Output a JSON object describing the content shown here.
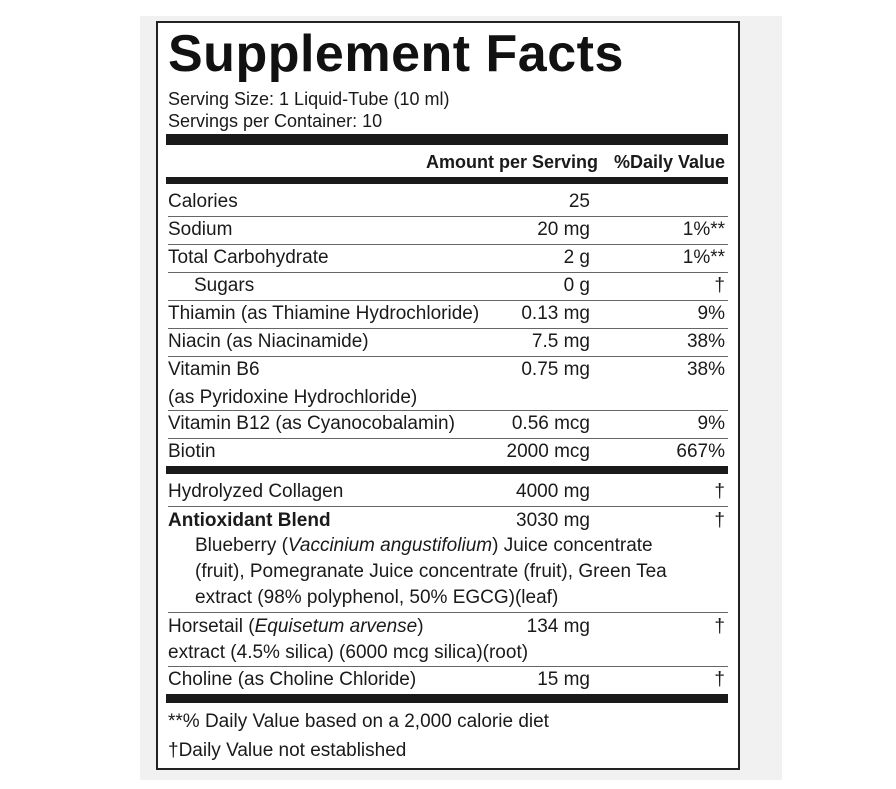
{
  "title": "Supplement Facts",
  "serving_size": "Serving Size:  1 Liquid-Tube (10 ml)",
  "servings_per_container": "Servings per Container:  10",
  "header": {
    "amount": "Amount per Serving",
    "daily_value": "%Daily Value"
  },
  "rows": [
    {
      "name": "Calories",
      "amount": "25"
    },
    {
      "name": "Sodium",
      "amount": "20 mg",
      "daily_value": "1%**"
    },
    {
      "name": "Total Carbohydrate",
      "amount": "2 g",
      "daily_value": "1%**"
    },
    {
      "name": "Sugars",
      "amount": "0 g",
      "daily_value": "†"
    },
    {
      "name": "Thiamin (as Thiamine Hydrochloride)",
      "amount": "0.13 mg",
      "daily_value": "9%"
    },
    {
      "name": "Niacin (as Niacinamide)",
      "amount": "7.5 mg",
      "daily_value": "38%"
    },
    {
      "name": "Vitamin B6",
      "name_detail": "(as Pyridoxine Hydrochloride)",
      "amount": "0.75 mg",
      "daily_value": "38%"
    },
    {
      "name": "Vitamin B12 (as Cyanocobalamin)",
      "amount": "0.56 mcg",
      "daily_value": "9%"
    },
    {
      "name": "Biotin",
      "amount": "2000 mcg",
      "daily_value": "667%"
    }
  ],
  "other_rows": [
    {
      "name": "Hydrolyzed Collagen",
      "amount": "4000 mg",
      "daily_value": "†"
    },
    {
      "name": "Antioxidant Blend",
      "amount": "3030 mg",
      "daily_value": "†",
      "description": [
        "Blueberry (",
        "Vaccinium angustifolium",
        ") Juice concentrate (fruit), Pomegranate Juice concentrate (fruit), Green Tea extract (98% polyphenol, 50% EGCG)(leaf)"
      ]
    },
    {
      "name": [
        "Horsetail (",
        "Equisetum arvense",
        ")"
      ],
      "name_detail": "extract (4.5% silica) (6000 mcg silica)(root)",
      "amount": "134 mg",
      "daily_value": "†"
    },
    {
      "name": "Choline (as Choline Chloride)",
      "amount": "15 mg",
      "daily_value": "†"
    }
  ],
  "footnotes": [
    "**% Daily Value based on a 2,000 calorie diet",
    "†Daily Value not established"
  ]
}
